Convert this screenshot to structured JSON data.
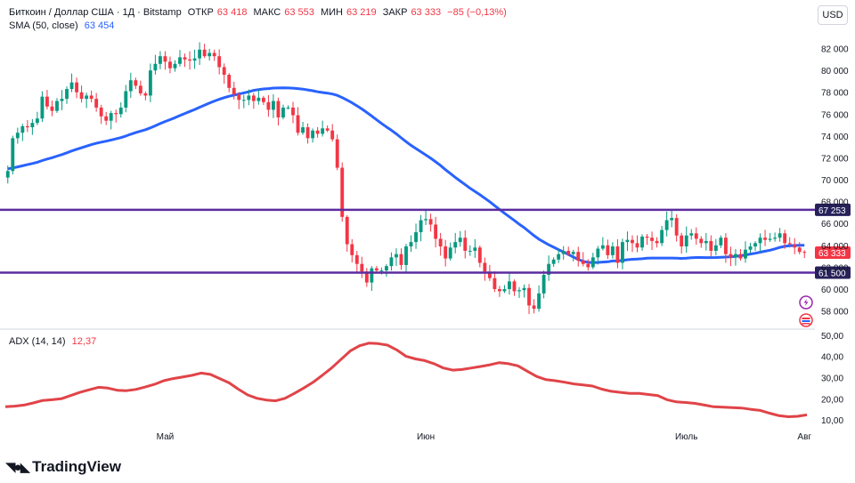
{
  "header": {
    "symbol": "Биткоин / Доллар США · 1Д · Bitstamp",
    "open_label": "ОТКР",
    "open_value": "63 418",
    "high_label": "МАКС",
    "high_value": "63 553",
    "low_label": "МИН",
    "low_value": "63 219",
    "close_label": "ЗАКР",
    "close_value": "63 333",
    "change": "−85 (−0,13%)",
    "sma_label": "SMA (50, close)",
    "sma_value": "63 454",
    "currency": "USD"
  },
  "adx_header": {
    "label": "ADX (14, 14)",
    "value": "12,37"
  },
  "brand": {
    "name": "TradingView"
  },
  "colors": {
    "up": "#089981",
    "down": "#f23645",
    "sma": "#2962ff",
    "adx": "#e04448",
    "levels": "#5b2c9f"
  },
  "icons": [
    "lightning-icon",
    "flag-icon",
    "tradingview-logo-icon"
  ],
  "chart_data": [
    {
      "type": "candlestick",
      "title": "Биткоин / Доллар США · 1Д · Bitstamp",
      "x_ticks": [
        "Май",
        "Июн",
        "Июль",
        "Авг"
      ],
      "y_ticks": [
        "58 000",
        "60 000",
        "62 000",
        "64 000",
        "66 000",
        "68 000",
        "70 000",
        "72 000",
        "74 000",
        "76 000",
        "78 000",
        "80 000",
        "82 000"
      ],
      "ylim": [
        56500,
        84000
      ],
      "grid": false,
      "ohlc_close": [
        70800,
        73800,
        74300,
        74900,
        74800,
        75200,
        75600,
        77600,
        76700,
        76300,
        77200,
        77400,
        78300,
        78900,
        78000,
        77400,
        77700,
        77400,
        76600,
        75800,
        75400,
        76100,
        76000,
        76600,
        78100,
        79100,
        78600,
        77900,
        77700,
        80000,
        80600,
        81300,
        80800,
        80200,
        80600,
        81200,
        81000,
        80900,
        81100,
        81900,
        81300,
        81600,
        81300,
        80300,
        79600,
        78400,
        77800,
        77300,
        77300,
        77700,
        77200,
        77500,
        77100,
        76400,
        77200,
        75700,
        76600,
        76600,
        75900,
        74300,
        74800,
        73800,
        74500,
        74200,
        74700,
        74500,
        73700,
        71100,
        66600,
        64100,
        63100,
        62300,
        61600,
        60600,
        61900,
        61700,
        61700,
        62100,
        62900,
        63200,
        62200,
        63900,
        64300,
        65200,
        66300,
        66400,
        65900,
        64600,
        63900,
        62800,
        63800,
        64300,
        64700,
        63500,
        63500,
        63800,
        62400,
        61600,
        61000,
        60000,
        59800,
        60000,
        60700,
        59800,
        59900,
        60100,
        58500,
        58200,
        59600,
        61300,
        62300,
        62700,
        63200,
        63500,
        63200,
        63400,
        62600,
        62300,
        62000,
        62900,
        63700,
        64000,
        63100,
        63900,
        62400,
        64300,
        64500,
        64200,
        63800,
        64800,
        64700,
        64400,
        64200,
        65400,
        66300,
        66500,
        64900,
        63900,
        64900,
        65100,
        64600,
        64200,
        64400,
        63500,
        64000,
        64700,
        63200,
        62900,
        63200,
        62800,
        63600,
        63900,
        64200,
        64700,
        64500,
        64600,
        64700,
        65100,
        64200,
        64100,
        63800,
        63400,
        63333
      ],
      "series": [
        {
          "name": "SMA (50, close)",
          "type": "line",
          "last": 63454
        }
      ],
      "annotations": [
        {
          "type": "hline",
          "value": 67253,
          "label": "67 253"
        },
        {
          "type": "hline",
          "value": 61500,
          "label": "61 500"
        },
        {
          "type": "price-tag",
          "value": 63333,
          "label": "63 333"
        }
      ]
    },
    {
      "type": "line",
      "title": "ADX (14, 14)",
      "y_ticks": [
        "10,00",
        "20,00",
        "30,00",
        "40,00",
        "50,00"
      ],
      "ylim": [
        5,
        52
      ],
      "series": [
        {
          "name": "ADX (14, 14)",
          "values": [
            16.2,
            16.5,
            17.0,
            18.0,
            19.2,
            19.5,
            20.0,
            21.5,
            23.0,
            24.2,
            25.4,
            25.0,
            24.0,
            23.8,
            24.4,
            25.5,
            26.8,
            28.5,
            29.5,
            30.2,
            31.0,
            32.1,
            31.5,
            29.5,
            27.5,
            24.5,
            21.8,
            20.2,
            19.4,
            19.0,
            20.2,
            22.5,
            25.0,
            27.7,
            31.0,
            34.5,
            38.5,
            42.5,
            45.0,
            46.2,
            46.0,
            45.3,
            43.0,
            40.0,
            38.8,
            38.0,
            36.5,
            34.5,
            33.5,
            33.8,
            34.5,
            35.2,
            36.0,
            37.0,
            36.5,
            35.5,
            33.0,
            30.5,
            29.0,
            28.5,
            27.8,
            27.0,
            26.5,
            26.0,
            24.5,
            23.5,
            23.0,
            22.5,
            22.5,
            22.0,
            21.5,
            19.5,
            18.5,
            18.2,
            17.8,
            17.0,
            16.2,
            16.0,
            15.8,
            15.6,
            15.0,
            14.5,
            13.2,
            12.0,
            11.5,
            11.7,
            12.37
          ]
        }
      ]
    }
  ]
}
